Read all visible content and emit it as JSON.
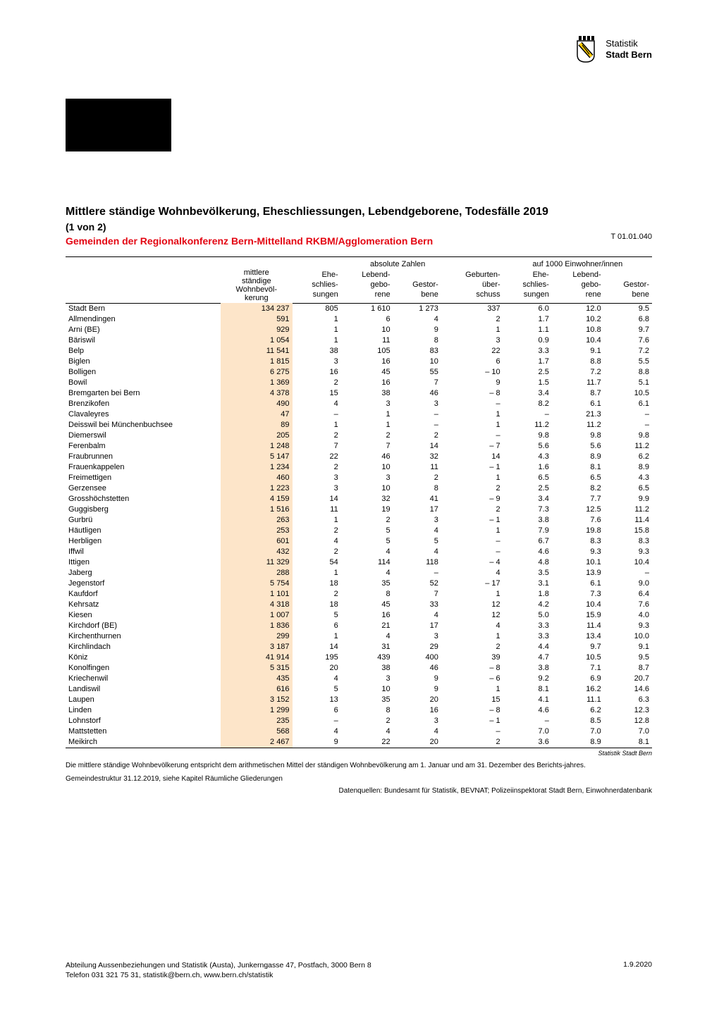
{
  "brand": {
    "line1": "Statistik",
    "line2": "Stadt Bern"
  },
  "title": "Mittlere ständige Wohnbevölkerung, Eheschliessungen, Lebendgeborene, Todesfälle 2019",
  "pagepart": "(1 von 2)",
  "subtitle": "Gemeinden der Regionalkonferenz Bern-Mittelland RKBM/Agglomeration Bern",
  "table_id": "T 01.01.040",
  "colors": {
    "accent": "#e30613",
    "highlight": "#fde5c9",
    "text": "#000000",
    "background": "#ffffff"
  },
  "headers": {
    "pop": "mittlere ständige Wohnbevöl-kerung",
    "abs": "absolute Zahlen",
    "per1000": "auf 1000 Einwohner/innen",
    "ehe": "Ehe-schlies-sungen",
    "geb": "Lebend-gebo-rene",
    "gestor": "Gestor-bene",
    "ueber": "Geburten-über-schuss",
    "ehe2": "Ehe-schlies-sungen",
    "geb2": "Lebend-gebo-rene",
    "gestor2": "Gestor-bene"
  },
  "rows": [
    {
      "g": "Stadt Bern",
      "p": "134 237",
      "a": [
        "805",
        "1 610",
        "1 273",
        "337"
      ],
      "r": [
        "6.0",
        "12.0",
        "9.5"
      ]
    },
    {
      "g": "Allmendingen",
      "p": "591",
      "a": [
        "1",
        "6",
        "4",
        "2"
      ],
      "r": [
        "1.7",
        "10.2",
        "6.8"
      ]
    },
    {
      "g": "Arni (BE)",
      "p": "929",
      "a": [
        "1",
        "10",
        "9",
        "1"
      ],
      "r": [
        "1.1",
        "10.8",
        "9.7"
      ]
    },
    {
      "g": "Bäriswil",
      "p": "1 054",
      "a": [
        "1",
        "11",
        "8",
        "3"
      ],
      "r": [
        "0.9",
        "10.4",
        "7.6"
      ]
    },
    {
      "g": "Belp",
      "p": "11 541",
      "a": [
        "38",
        "105",
        "83",
        "22"
      ],
      "r": [
        "3.3",
        "9.1",
        "7.2"
      ]
    },
    {
      "g": "Biglen",
      "p": "1 815",
      "a": [
        "3",
        "16",
        "10",
        "6"
      ],
      "r": [
        "1.7",
        "8.8",
        "5.5"
      ]
    },
    {
      "g": "Bolligen",
      "p": "6 275",
      "a": [
        "16",
        "45",
        "55",
        "– 10"
      ],
      "r": [
        "2.5",
        "7.2",
        "8.8"
      ]
    },
    {
      "g": "Bowil",
      "p": "1 369",
      "a": [
        "2",
        "16",
        "7",
        "9"
      ],
      "r": [
        "1.5",
        "11.7",
        "5.1"
      ]
    },
    {
      "g": "Bremgarten bei Bern",
      "p": "4 378",
      "a": [
        "15",
        "38",
        "46",
        "– 8"
      ],
      "r": [
        "3.4",
        "8.7",
        "10.5"
      ]
    },
    {
      "g": "Brenzikofen",
      "p": "490",
      "a": [
        "4",
        "3",
        "3",
        "–"
      ],
      "r": [
        "8.2",
        "6.1",
        "6.1"
      ]
    },
    {
      "g": "Clavaleyres",
      "p": "47",
      "a": [
        "–",
        "1",
        "–",
        "1"
      ],
      "r": [
        "–",
        "21.3",
        "–"
      ]
    },
    {
      "g": "Deisswil bei Münchenbuchsee",
      "p": "89",
      "a": [
        "1",
        "1",
        "–",
        "1"
      ],
      "r": [
        "11.2",
        "11.2",
        "–"
      ]
    },
    {
      "g": "Diemerswil",
      "p": "205",
      "a": [
        "2",
        "2",
        "2",
        "–"
      ],
      "r": [
        "9.8",
        "9.8",
        "9.8"
      ]
    },
    {
      "g": "Ferenbalm",
      "p": "1 248",
      "a": [
        "7",
        "7",
        "14",
        "– 7"
      ],
      "r": [
        "5.6",
        "5.6",
        "11.2"
      ]
    },
    {
      "g": "Fraubrunnen",
      "p": "5 147",
      "a": [
        "22",
        "46",
        "32",
        "14"
      ],
      "r": [
        "4.3",
        "8.9",
        "6.2"
      ]
    },
    {
      "g": "Frauenkappelen",
      "p": "1 234",
      "a": [
        "2",
        "10",
        "11",
        "– 1"
      ],
      "r": [
        "1.6",
        "8.1",
        "8.9"
      ]
    },
    {
      "g": "Freimettigen",
      "p": "460",
      "a": [
        "3",
        "3",
        "2",
        "1"
      ],
      "r": [
        "6.5",
        "6.5",
        "4.3"
      ]
    },
    {
      "g": "Gerzensee",
      "p": "1 223",
      "a": [
        "3",
        "10",
        "8",
        "2"
      ],
      "r": [
        "2.5",
        "8.2",
        "6.5"
      ]
    },
    {
      "g": "Grosshöchstetten",
      "p": "4 159",
      "a": [
        "14",
        "32",
        "41",
        "– 9"
      ],
      "r": [
        "3.4",
        "7.7",
        "9.9"
      ]
    },
    {
      "g": "Guggisberg",
      "p": "1 516",
      "a": [
        "11",
        "19",
        "17",
        "2"
      ],
      "r": [
        "7.3",
        "12.5",
        "11.2"
      ]
    },
    {
      "g": "Gurbrü",
      "p": "263",
      "a": [
        "1",
        "2",
        "3",
        "– 1"
      ],
      "r": [
        "3.8",
        "7.6",
        "11.4"
      ]
    },
    {
      "g": "Häutligen",
      "p": "253",
      "a": [
        "2",
        "5",
        "4",
        "1"
      ],
      "r": [
        "7.9",
        "19.8",
        "15.8"
      ]
    },
    {
      "g": "Herbligen",
      "p": "601",
      "a": [
        "4",
        "5",
        "5",
        "–"
      ],
      "r": [
        "6.7",
        "8.3",
        "8.3"
      ]
    },
    {
      "g": "Iffwil",
      "p": "432",
      "a": [
        "2",
        "4",
        "4",
        "–"
      ],
      "r": [
        "4.6",
        "9.3",
        "9.3"
      ]
    },
    {
      "g": "Ittigen",
      "p": "11 329",
      "a": [
        "54",
        "114",
        "118",
        "– 4"
      ],
      "r": [
        "4.8",
        "10.1",
        "10.4"
      ]
    },
    {
      "g": "Jaberg",
      "p": "288",
      "a": [
        "1",
        "4",
        "–",
        "4"
      ],
      "r": [
        "3.5",
        "13.9",
        "–"
      ]
    },
    {
      "g": "Jegenstorf",
      "p": "5 754",
      "a": [
        "18",
        "35",
        "52",
        "– 17"
      ],
      "r": [
        "3.1",
        "6.1",
        "9.0"
      ]
    },
    {
      "g": "Kaufdorf",
      "p": "1 101",
      "a": [
        "2",
        "8",
        "7",
        "1"
      ],
      "r": [
        "1.8",
        "7.3",
        "6.4"
      ]
    },
    {
      "g": "Kehrsatz",
      "p": "4 318",
      "a": [
        "18",
        "45",
        "33",
        "12"
      ],
      "r": [
        "4.2",
        "10.4",
        "7.6"
      ]
    },
    {
      "g": "Kiesen",
      "p": "1 007",
      "a": [
        "5",
        "16",
        "4",
        "12"
      ],
      "r": [
        "5.0",
        "15.9",
        "4.0"
      ]
    },
    {
      "g": "Kirchdorf (BE)",
      "p": "1 836",
      "a": [
        "6",
        "21",
        "17",
        "4"
      ],
      "r": [
        "3.3",
        "11.4",
        "9.3"
      ]
    },
    {
      "g": "Kirchenthurnen",
      "p": "299",
      "a": [
        "1",
        "4",
        "3",
        "1"
      ],
      "r": [
        "3.3",
        "13.4",
        "10.0"
      ]
    },
    {
      "g": "Kirchlindach",
      "p": "3 187",
      "a": [
        "14",
        "31",
        "29",
        "2"
      ],
      "r": [
        "4.4",
        "9.7",
        "9.1"
      ]
    },
    {
      "g": "Köniz",
      "p": "41 914",
      "a": [
        "195",
        "439",
        "400",
        "39"
      ],
      "r": [
        "4.7",
        "10.5",
        "9.5"
      ]
    },
    {
      "g": "Konolfingen",
      "p": "5 315",
      "a": [
        "20",
        "38",
        "46",
        "– 8"
      ],
      "r": [
        "3.8",
        "7.1",
        "8.7"
      ]
    },
    {
      "g": "Kriechenwil",
      "p": "435",
      "a": [
        "4",
        "3",
        "9",
        "– 6"
      ],
      "r": [
        "9.2",
        "6.9",
        "20.7"
      ]
    },
    {
      "g": "Landiswil",
      "p": "616",
      "a": [
        "5",
        "10",
        "9",
        "1"
      ],
      "r": [
        "8.1",
        "16.2",
        "14.6"
      ]
    },
    {
      "g": "Laupen",
      "p": "3 152",
      "a": [
        "13",
        "35",
        "20",
        "15"
      ],
      "r": [
        "4.1",
        "11.1",
        "6.3"
      ]
    },
    {
      "g": "Linden",
      "p": "1 299",
      "a": [
        "6",
        "8",
        "16",
        "– 8"
      ],
      "r": [
        "4.6",
        "6.2",
        "12.3"
      ]
    },
    {
      "g": "Lohnstorf",
      "p": "235",
      "a": [
        "–",
        "2",
        "3",
        "– 1"
      ],
      "r": [
        "–",
        "8.5",
        "12.8"
      ]
    },
    {
      "g": "Mattstetten",
      "p": "568",
      "a": [
        "4",
        "4",
        "4",
        "–"
      ],
      "r": [
        "7.0",
        "7.0",
        "7.0"
      ]
    },
    {
      "g": "Meikirch",
      "p": "2 467",
      "a": [
        "9",
        "22",
        "20",
        "2"
      ],
      "r": [
        "3.6",
        "8.9",
        "8.1"
      ]
    }
  ],
  "source_tag": "Statistik Stadt Bern",
  "footnote1": "Die mittlere ständige Wohnbevölkerung entspricht dem arithmetischen Mittel der ständigen Wohnbevölkerung am 1. Januar und am 31. Dezember des Berichts-jahres.",
  "footnote2": "Gemeindestruktur 31.12.2019, siehe Kapitel Räumliche Gliederungen",
  "data_sources": "Datenquellen: Bundesamt für Statistik, BEVNAT; Polizeiinspektorat Stadt Bern, Einwohnerdatenbank",
  "footer": {
    "dept": "Abteilung Aussenbeziehungen und Statistik (Austa), Junkerngasse 47, Postfach, 3000 Bern 8",
    "contact": "Telefon 031 321 75 31, statistik@bern.ch, www.bern.ch/statistik",
    "date": "1.9.2020"
  }
}
